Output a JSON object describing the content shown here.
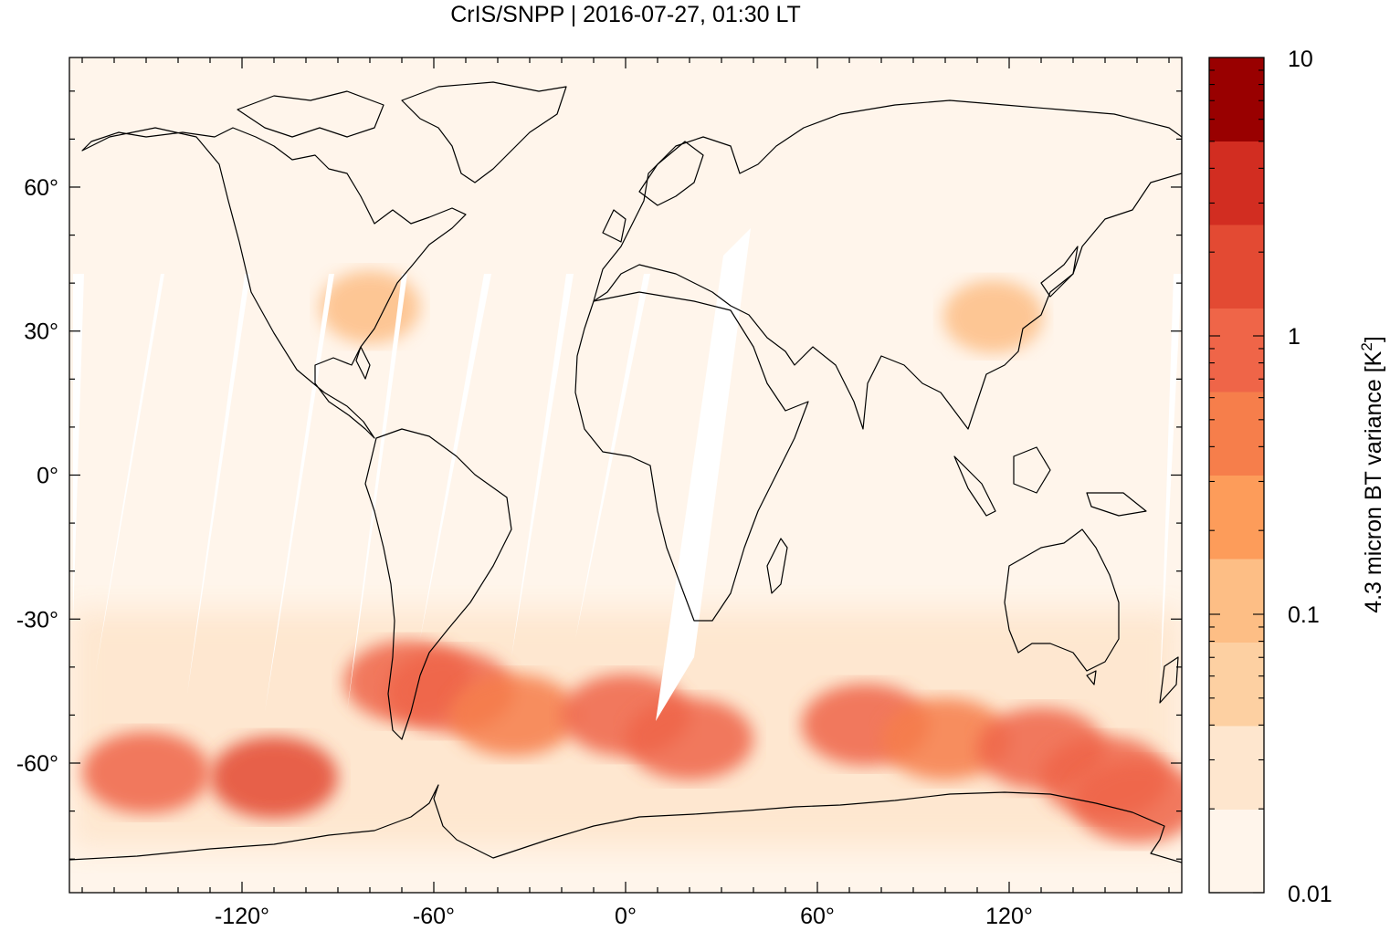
{
  "title": "CrIS/SNPP | 2016-07-27, 01:30 LT",
  "map": {
    "lon_range": [
      -174,
      174
    ],
    "lat_range": [
      -87,
      87
    ],
    "lon_ticks": [
      {
        "value": -120,
        "label": "-120°"
      },
      {
        "value": -60,
        "label": "-60°"
      },
      {
        "value": 0,
        "label": "0°"
      },
      {
        "value": 60,
        "label": "60°"
      },
      {
        "value": 120,
        "label": "120°"
      }
    ],
    "lat_ticks": [
      {
        "value": 60,
        "label": "60°"
      },
      {
        "value": 30,
        "label": "30°"
      },
      {
        "value": 0,
        "label": "0°"
      },
      {
        "value": -30,
        "label": "-30°"
      },
      {
        "value": -60,
        "label": "-60°"
      }
    ],
    "background_color": "#fff5eb",
    "coastline_color": "#000000"
  },
  "colorbar": {
    "label": "4.3 micron BT variance [K²]",
    "scale": "log",
    "range": [
      0.01,
      10
    ],
    "tick_labels": [
      {
        "value": 10,
        "label": "10"
      },
      {
        "value": 1,
        "label": "1"
      },
      {
        "value": 0.1,
        "label": "0.1"
      },
      {
        "value": 0.01,
        "label": "0.01"
      }
    ],
    "colors": [
      "#fff5eb",
      "#fee6ce",
      "#fdd0a2",
      "#fdbe85",
      "#fd9c5a",
      "#f67e4b",
      "#ef6548",
      "#e34a33",
      "#d22d21",
      "#990000"
    ]
  },
  "chart_data": {
    "type": "heatmap",
    "title": "CrIS/SNPP | 2016-07-27, 01:30 LT",
    "xlabel": "",
    "ylabel": "",
    "colorbar_label": "4.3 micron BT variance [K²]",
    "xlim": [
      -174,
      174
    ],
    "ylim": [
      -87,
      87
    ],
    "color_scale": "log",
    "color_range": [
      0.01,
      10
    ],
    "regions": [
      {
        "lon": -110,
        "lat": -63,
        "value": 1.5
      },
      {
        "lon": -150,
        "lat": -62,
        "value": 0.8
      },
      {
        "lon": -68,
        "lat": -43,
        "value": 1.0
      },
      {
        "lon": -55,
        "lat": -45,
        "value": 0.8
      },
      {
        "lon": -35,
        "lat": -50,
        "value": 0.6
      },
      {
        "lon": 0,
        "lat": -50,
        "value": 0.9
      },
      {
        "lon": 20,
        "lat": -55,
        "value": 0.7
      },
      {
        "lon": 75,
        "lat": -52,
        "value": 0.9
      },
      {
        "lon": 100,
        "lat": -55,
        "value": 0.6
      },
      {
        "lon": 130,
        "lat": -57,
        "value": 1.2
      },
      {
        "lon": 150,
        "lat": -63,
        "value": 1.0
      },
      {
        "lon": 160,
        "lat": -68,
        "value": 0.7
      },
      {
        "lon": 115,
        "lat": 33,
        "value": 0.15
      },
      {
        "lon": -80,
        "lat": 35,
        "value": 0.08
      }
    ]
  }
}
